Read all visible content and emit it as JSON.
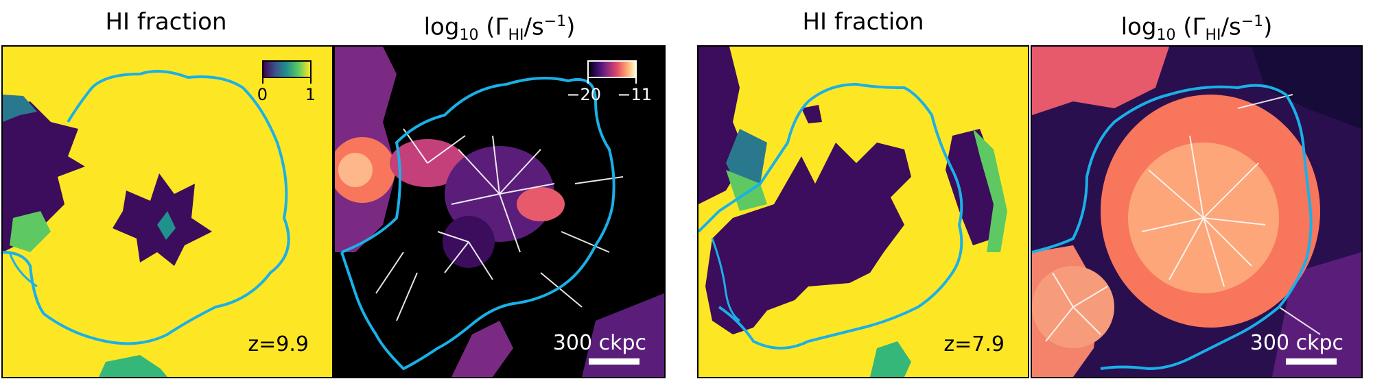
{
  "panels": [
    {
      "title_hi": "HI fraction",
      "redshift": "z=9.9",
      "colorbar": {
        "min_label": "0",
        "max_label": "1",
        "colormap": "viridis"
      }
    },
    {
      "title_gamma": {
        "prefix": "log",
        "base": "10",
        "gamma": "Γ",
        "gamma_sub": "HI",
        "unit": "/s",
        "unit_sup": "−1"
      },
      "colorbar": {
        "min_label": "−20",
        "max_label": "−11",
        "colormap": "magma"
      },
      "scale": "300 ckpc"
    },
    {
      "title_hi": "HI fraction",
      "redshift": "z=7.9"
    },
    {
      "title_gamma": {
        "prefix": "log",
        "base": "10",
        "gamma": "Γ",
        "gamma_sub": "HI",
        "unit": "/s",
        "unit_sup": "−1"
      },
      "scale": "300 ckpc"
    }
  ],
  "colors": {
    "contour": "#1ab0e8",
    "neutral": "#fde725",
    "ionized": "#3b0d5c",
    "background_gamma": "#000000"
  }
}
